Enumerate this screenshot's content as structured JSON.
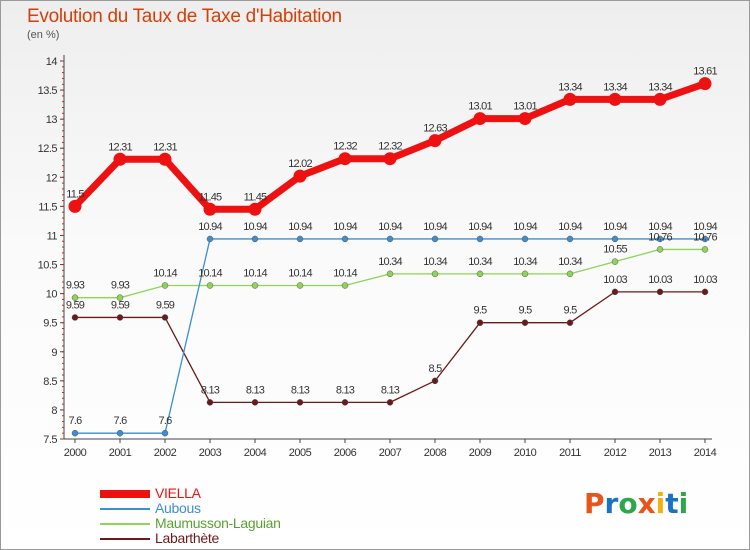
{
  "title": "Evolution du Taux de Taxe d'Habitation",
  "subtitle": "(en %)",
  "logo": {
    "text": "Proxiti",
    "letter_colors": [
      "#e8541a",
      "#1a73c2",
      "#2ba84a",
      "#e8541a",
      "#f2b10c",
      "#1a73c2",
      "#2ba84a"
    ]
  },
  "chart_data": {
    "type": "line",
    "title": "Evolution du Taux de Taxe d'Habitation",
    "ylabel": "(en %)",
    "xlabel": "",
    "x": [
      "2000",
      "2001",
      "2002",
      "2003",
      "2004",
      "2005",
      "2006",
      "2007",
      "2008",
      "2009",
      "2010",
      "2011",
      "2012",
      "2013",
      "2014"
    ],
    "ylim": [
      7.5,
      14
    ],
    "yticks": [
      7.5,
      8,
      8.5,
      9,
      9.5,
      10,
      10.5,
      11,
      11.5,
      12,
      12.5,
      13,
      13.5,
      14
    ],
    "grid": false,
    "legend_position": "bottom-left",
    "series": [
      {
        "name": "VIELLA",
        "color": "#ee1111",
        "values": [
          11.5,
          12.31,
          12.31,
          11.45,
          11.45,
          12.02,
          12.32,
          12.32,
          12.63,
          13.01,
          13.01,
          13.34,
          13.34,
          13.34,
          13.61
        ],
        "labels": [
          "11.5",
          "12.31",
          "12.31",
          "11.45",
          "11.45",
          "12.02",
          "12.32",
          "12.32",
          "12.63",
          "13.01",
          "13.01",
          "13.34",
          "13.34",
          "13.34",
          "13.61"
        ]
      },
      {
        "name": "Aubous",
        "color": "#3d8ed0",
        "values": [
          7.6,
          7.6,
          7.6,
          10.94,
          10.94,
          10.94,
          10.94,
          10.94,
          10.94,
          10.94,
          10.94,
          10.94,
          10.94,
          10.94,
          10.94
        ],
        "labels": [
          "7.6",
          "7.6",
          "7.6",
          "10.94",
          "10.94",
          "10.94",
          "10.94",
          "10.94",
          "10.94",
          "10.94",
          "10.94",
          "10.94",
          "10.94",
          "10.94",
          "10.94"
        ]
      },
      {
        "name": "Maumusson-Laguian",
        "color": "#8fd35a",
        "values": [
          9.93,
          9.93,
          10.14,
          10.14,
          10.14,
          10.14,
          10.14,
          10.34,
          10.34,
          10.34,
          10.34,
          10.34,
          10.55,
          10.76,
          10.76
        ],
        "labels": [
          "9.93",
          "9.93",
          "10.14",
          "10.14",
          "10.14",
          "10.14",
          "10.14",
          "10.34",
          "10.34",
          "10.34",
          "10.34",
          "10.34",
          "10.55",
          "10.76",
          "10.76"
        ]
      },
      {
        "name": "Labarthète",
        "color": "#6b1a1a",
        "values": [
          9.59,
          9.59,
          9.59,
          8.13,
          8.13,
          8.13,
          8.13,
          8.13,
          8.5,
          9.5,
          9.5,
          9.5,
          10.03,
          10.03,
          10.03
        ],
        "labels": [
          "9.59",
          "9.59",
          "9.59",
          "8.13",
          "8.13",
          "8.13",
          "8.13",
          "8.13",
          "8.5",
          "9.5",
          "9.5",
          "9.5",
          "10.03",
          "10.03",
          "10.03"
        ]
      }
    ]
  }
}
